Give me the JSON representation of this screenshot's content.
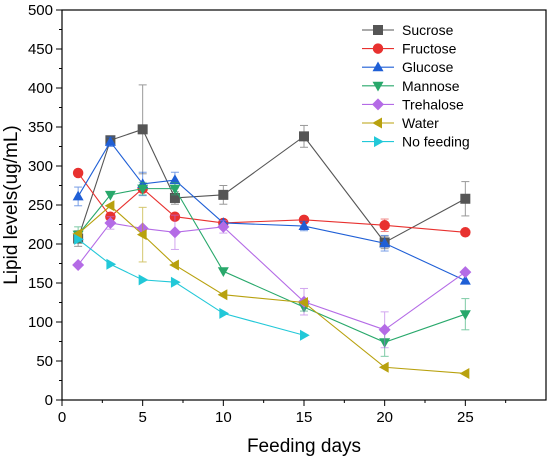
{
  "chart_data": {
    "type": "line",
    "xlabel": "Feeding days",
    "ylabel": "Lipid levels(ug/mL)",
    "xlim": [
      0,
      30
    ],
    "ylim": [
      0,
      500
    ],
    "xticks": [
      0,
      5,
      10,
      15,
      20,
      25
    ],
    "yticks": [
      0,
      50,
      100,
      150,
      200,
      250,
      300,
      350,
      400,
      450,
      500
    ],
    "grid": false,
    "legend_position": "top-right",
    "series": [
      {
        "name": "Sucrose",
        "color": "#555555",
        "marker": "square",
        "x": [
          1,
          3,
          5,
          7,
          10,
          15,
          20,
          25
        ],
        "y": [
          207,
          333,
          347,
          259,
          263,
          338,
          202,
          258
        ],
        "err": [
          10,
          5,
          57,
          8,
          12,
          14,
          8,
          22
        ]
      },
      {
        "name": "Fructose",
        "color": "#e8312f",
        "marker": "circle",
        "x": [
          1,
          3,
          5,
          7,
          10,
          15,
          20,
          25
        ],
        "y": [
          291,
          235,
          271,
          235,
          227,
          231,
          224,
          215
        ],
        "err": [
          0,
          0,
          0,
          0,
          0,
          0,
          8,
          0
        ]
      },
      {
        "name": "Glucose",
        "color": "#1f5fd6",
        "marker": "triangle-up",
        "x": [
          1,
          3,
          5,
          7,
          10,
          15,
          20,
          25
        ],
        "y": [
          261,
          331,
          277,
          282,
          227,
          223,
          201,
          153
        ],
        "err": [
          12,
          6,
          15,
          10,
          0,
          6,
          10,
          0
        ]
      },
      {
        "name": "Mannose",
        "color": "#28a86b",
        "marker": "triangle-down",
        "x": [
          1,
          3,
          5,
          7,
          10,
          15,
          20,
          25
        ],
        "y": [
          212,
          263,
          271,
          271,
          165,
          119,
          74,
          110
        ],
        "err": [
          10,
          0,
          8,
          8,
          0,
          5,
          18,
          20
        ]
      },
      {
        "name": "Trehalose",
        "color": "#b46be6",
        "marker": "diamond",
        "x": [
          1,
          3,
          5,
          7,
          10,
          15,
          20,
          25
        ],
        "y": [
          173,
          227,
          220,
          215,
          222,
          126,
          90,
          164
        ],
        "err": [
          0,
          8,
          0,
          22,
          8,
          17,
          23,
          0
        ]
      },
      {
        "name": "Water",
        "color": "#b8a10e",
        "marker": "triangle-left",
        "x": [
          1,
          3,
          5,
          7,
          10,
          15,
          20,
          25
        ],
        "y": [
          213,
          249,
          212,
          173,
          135,
          125,
          42,
          34
        ],
        "err": [
          0,
          0,
          35,
          0,
          0,
          0,
          0,
          0
        ]
      },
      {
        "name": "No feeding",
        "color": "#22c8d8",
        "marker": "triangle-right",
        "x": [
          1,
          3,
          5,
          7,
          10,
          15
        ],
        "y": [
          206,
          174,
          154,
          151,
          111,
          83
        ],
        "err": [
          0,
          0,
          0,
          0,
          0,
          0
        ]
      }
    ]
  }
}
